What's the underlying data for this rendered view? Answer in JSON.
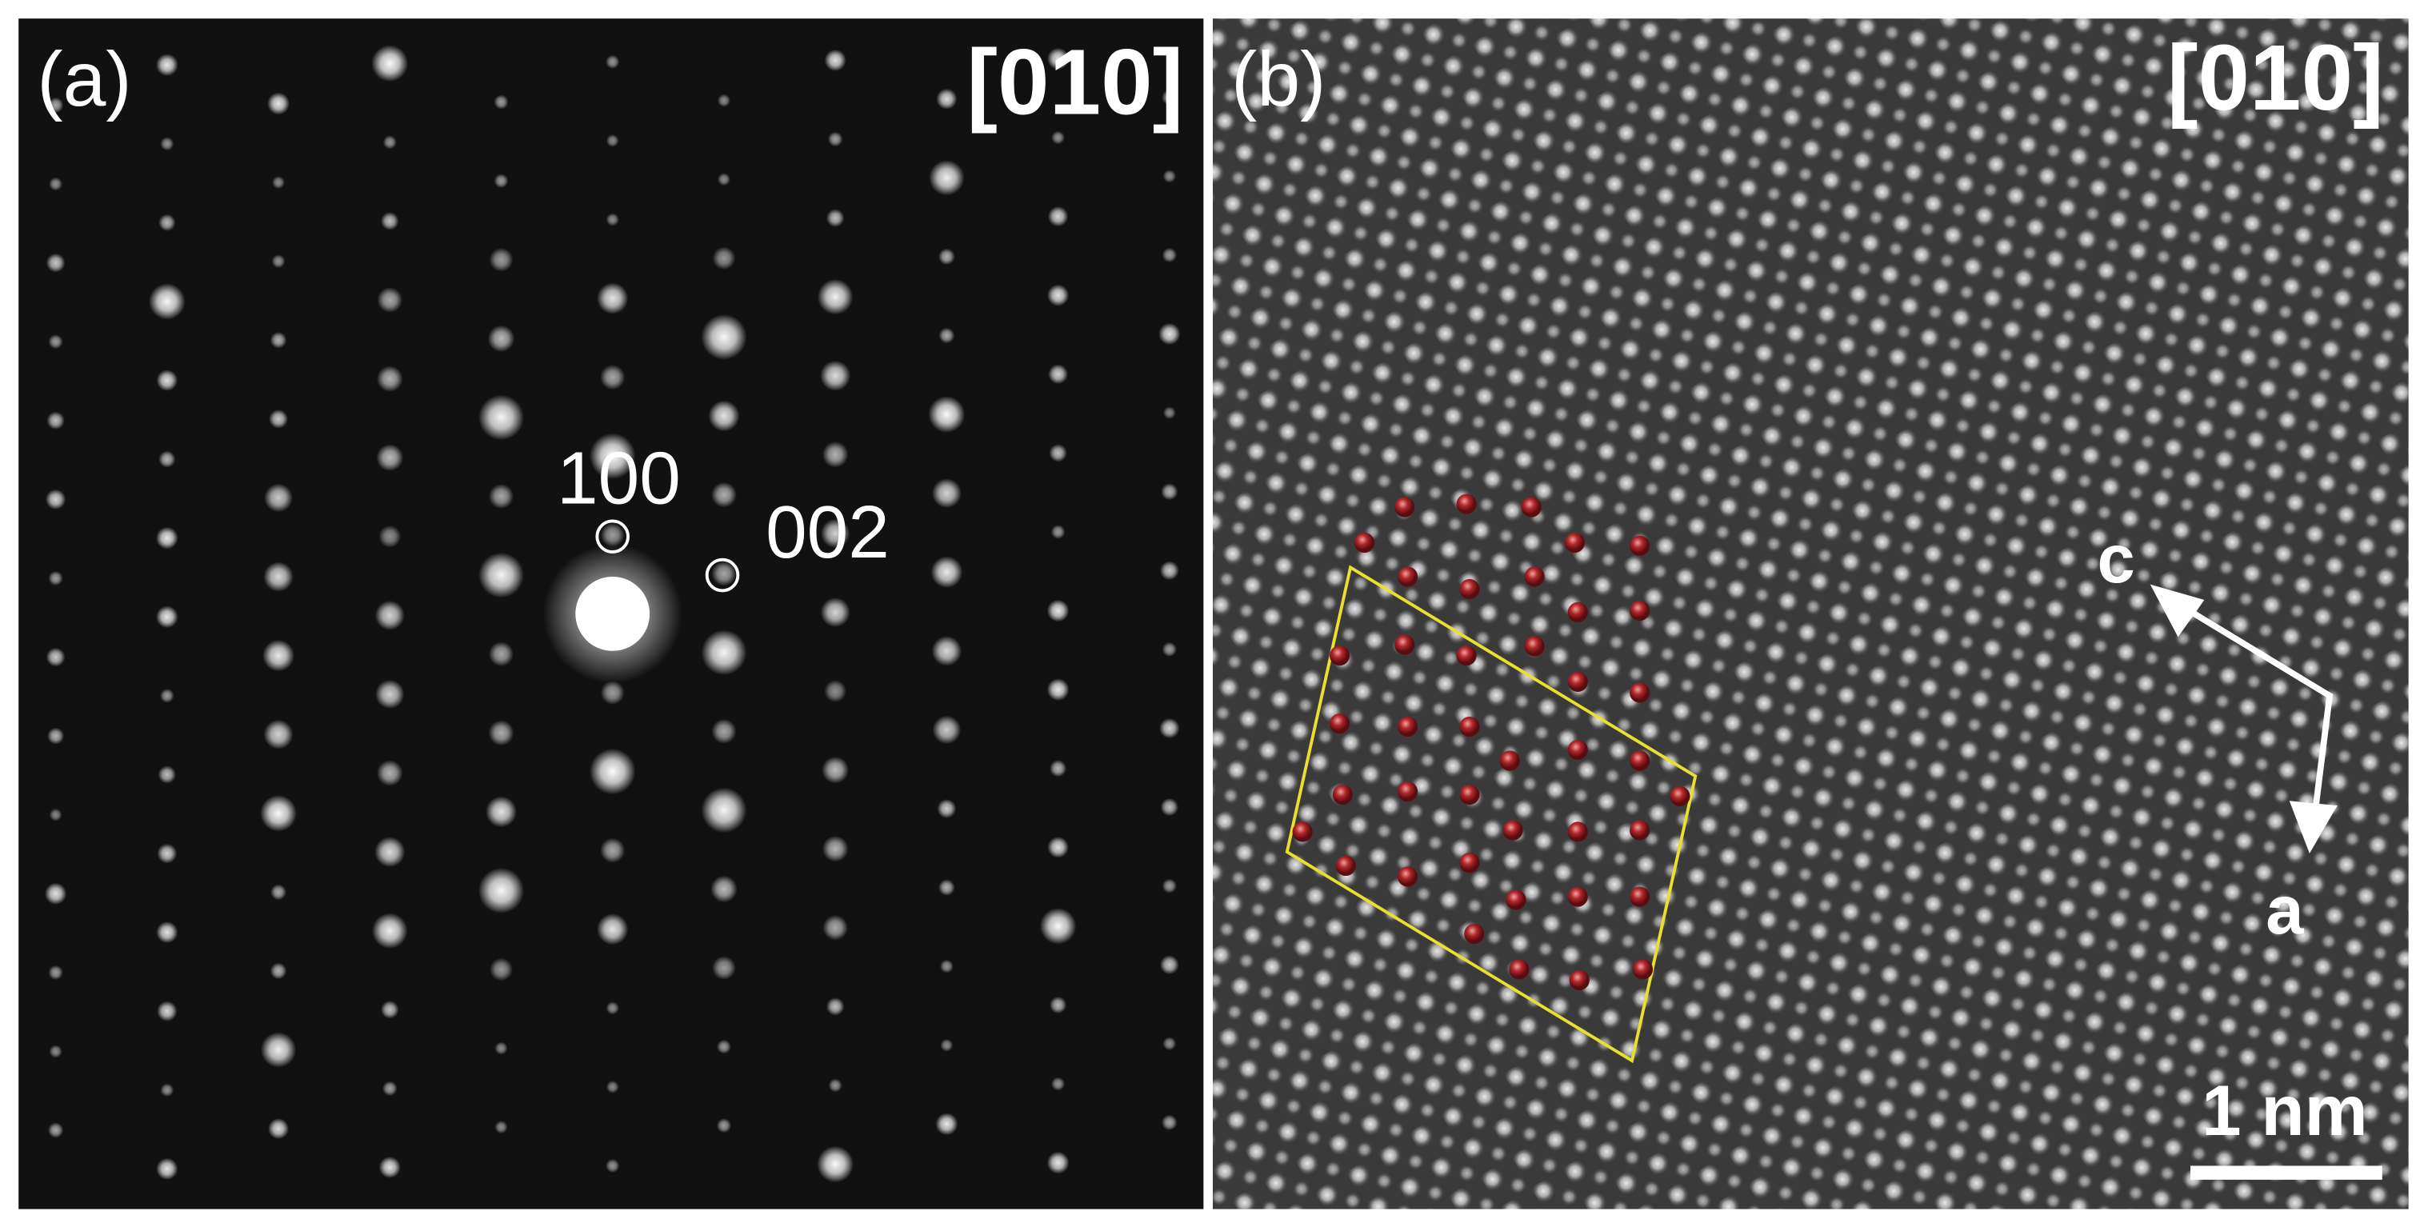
{
  "panels": [
    {
      "label": "(a)",
      "zone_axis": "[010]",
      "spots": [
        "100",
        "002"
      ]
    },
    {
      "label": "(b)",
      "zone_axis": "[010]",
      "axes": [
        "c",
        "a"
      ],
      "scale_bar": "1 nm"
    }
  ]
}
